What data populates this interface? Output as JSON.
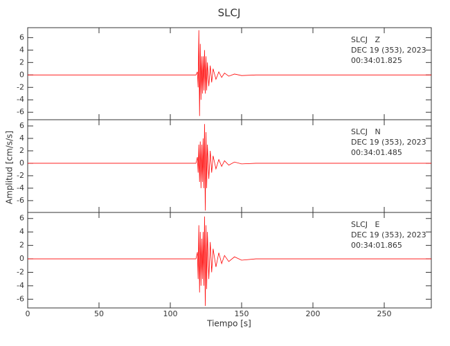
{
  "chart_data": {
    "type": "line",
    "title": "SLCJ",
    "xlabel": "Tiempo [s]",
    "ylabel": "Amplitud [cm/s/s]",
    "xlim": [
      0,
      283
    ],
    "xticks": [
      0,
      50,
      100,
      150,
      200,
      250
    ],
    "panels": [
      {
        "station": "SLCJ   Z",
        "date": "DEC 19 (353), 2023",
        "time": "00:34:01.825",
        "color": "#ff0000",
        "ylim": [
          -7.2,
          7.6
        ],
        "yticks": [
          -6,
          -4,
          -2,
          0,
          2,
          4,
          6
        ],
        "x": [
          0,
          118,
          119,
          119.5,
          120,
          120.5,
          121,
          121.5,
          122,
          122.5,
          123,
          123.5,
          124,
          124.5,
          125,
          125.5,
          126,
          127,
          128,
          129,
          130,
          132,
          134,
          136,
          138,
          141,
          145,
          150,
          160,
          283
        ],
        "values": [
          0,
          0,
          0.5,
          -2,
          7.2,
          -6.6,
          5,
          -4,
          3,
          -3,
          3,
          -2.5,
          4,
          -3,
          3,
          -2.5,
          2,
          -1.8,
          1.5,
          -1.2,
          1,
          -0.7,
          0.5,
          -0.4,
          0.3,
          -0.2,
          0.15,
          -0.1,
          0,
          0
        ]
      },
      {
        "station": "SLCJ   N",
        "date": "DEC 19 (353), 2023",
        "time": "00:34:01.485",
        "color": "#ff0000",
        "ylim": [
          -7.9,
          7.0
        ],
        "yticks": [
          -6,
          -4,
          -2,
          0,
          2,
          4,
          6
        ],
        "x": [
          0,
          118,
          119,
          119.5,
          120,
          120.5,
          121,
          121.5,
          122,
          122.5,
          123,
          123.5,
          124,
          124.5,
          125,
          125.5,
          126,
          127,
          128,
          129,
          130,
          132,
          134,
          136,
          138,
          141,
          145,
          150,
          160,
          283
        ],
        "values": [
          0,
          0,
          1,
          -1.5,
          3,
          -3,
          3.5,
          -4,
          3,
          -3,
          4,
          -4,
          6.3,
          -7.6,
          5,
          -4,
          3,
          -2.5,
          2,
          -1.5,
          1.2,
          -0.9,
          0.6,
          -0.5,
          0.4,
          -0.3,
          0.2,
          -0.1,
          0,
          0
        ]
      },
      {
        "station": "SLCJ   E",
        "date": "DEC 19 (353), 2023",
        "time": "00:34:01.865",
        "color": "#ff0000",
        "ylim": [
          -7.3,
          6.9
        ],
        "yticks": [
          -6,
          -4,
          -2,
          0,
          2,
          4,
          6
        ],
        "x": [
          0,
          118,
          119,
          119.5,
          120,
          120.5,
          121,
          121.5,
          122,
          122.5,
          123,
          123.5,
          124,
          124.5,
          125,
          125.5,
          126,
          127,
          128,
          129,
          130,
          132,
          134,
          136,
          138,
          141,
          145,
          150,
          160,
          283
        ],
        "values": [
          0,
          0,
          1,
          -3,
          5,
          -5,
          4,
          -4,
          3,
          -3,
          4,
          -4,
          6.3,
          -7,
          5,
          -4.5,
          4,
          -3,
          2.5,
          -2,
          1.5,
          -1.2,
          0.9,
          -0.7,
          0.5,
          -0.4,
          0.3,
          -0.2,
          0,
          0
        ]
      }
    ]
  }
}
